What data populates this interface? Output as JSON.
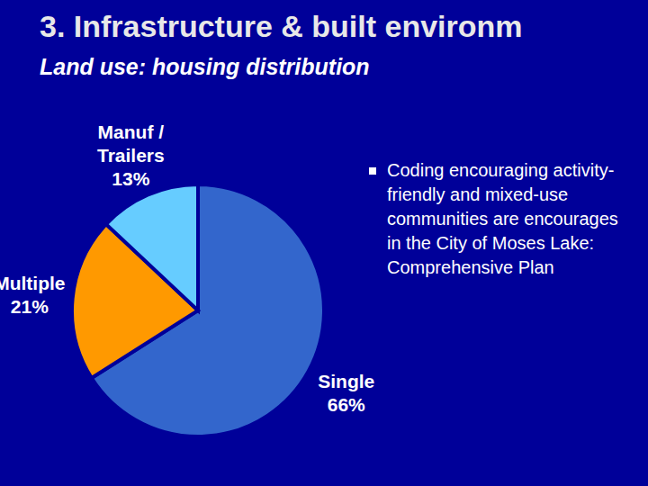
{
  "chart_data": {
    "type": "pie",
    "title": "3. Infrastructure & built environm",
    "subtitle": "Land use: housing distribution",
    "annotations": [
      "Coding encouraging activity-friendly and mixed-use communities are encourages in the City of Moses Lake: Comprehensive Plan"
    ],
    "categories": [
      "Single",
      "Multiple",
      "Manuf / Trailers"
    ],
    "values": [
      66,
      21,
      13
    ],
    "value_labels": [
      "66%",
      "21%",
      "13%"
    ],
    "colors": [
      "#3366cc",
      "#ff9900",
      "#66ccff"
    ],
    "data_labels": true
  }
}
